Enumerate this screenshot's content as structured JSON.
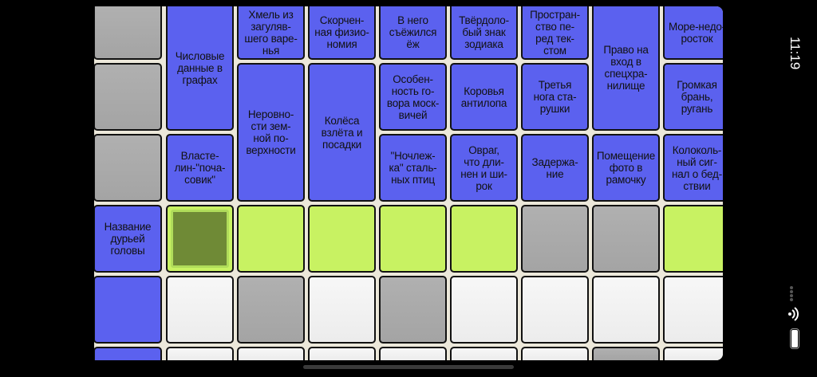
{
  "status_bar": {
    "time": "11:19",
    "wifi_icon": "wifi-icon",
    "battery_icon": "battery-icon"
  },
  "colors": {
    "clue": "#5b61ef",
    "blocked": "#a8a8a8",
    "active_word": "#c8f262",
    "selected": "#6f8a36",
    "empty": "#f2f2f2"
  },
  "grid": {
    "rows": [
      [
        {
          "t": "gray"
        },
        {
          "t": "clue",
          "text": "Числовые\nданные в\nграфах",
          "span": 2
        },
        {
          "t": "clue",
          "text": "Хмель из\nзагуляв-\nшего варе-\nнья"
        },
        {
          "t": "clue",
          "text": "Скорчен-\nная физио-\nномия"
        },
        {
          "t": "clue",
          "text": "В него\nсъёжился\nёж"
        },
        {
          "t": "clue",
          "text": "Твёрдоло-\nбый знак\nзодиака"
        },
        {
          "t": "clue",
          "text": "Простран-\nство пе-\nред тек-\nстом"
        },
        {
          "t": "clue",
          "text": "Право на\nвход в\nспецхра-\nнилище",
          "span": 2
        },
        {
          "t": "clue",
          "text": "Море-недо-\nросток"
        }
      ],
      [
        {
          "t": "gray"
        },
        null,
        {
          "t": "clue",
          "text": "Неровно-\nсти зем-\nной по-\nверхности",
          "span": 2
        },
        {
          "t": "clue",
          "text": "Колёса\nвзлёта и\nпосадки",
          "span": 2
        },
        {
          "t": "clue",
          "text": "Особен-\nность го-\nвора моск-\nвичей"
        },
        {
          "t": "clue",
          "text": "Коровья\nантилопа"
        },
        {
          "t": "clue",
          "text": "Третья\nнога ста-\nрушки"
        },
        null,
        {
          "t": "clue",
          "text": "Громкая\nбрань,\nругань"
        }
      ],
      [
        {
          "t": "gray"
        },
        {
          "t": "clue",
          "text": "Власте-\nлин-\"поча-\nсовик\""
        },
        null,
        null,
        {
          "t": "clue",
          "text": "\"Ночлеж-\nка\" сталь-\nных птиц"
        },
        {
          "t": "clue",
          "text": "Овраг,\nчто дли-\nнен и ши-\nрок"
        },
        {
          "t": "clue",
          "text": "Задержа-\nние"
        },
        {
          "t": "clue",
          "text": "Помещение\nфото в\nрамочку"
        },
        {
          "t": "clue",
          "text": "Колоколь-\nный сиг-\nнал о бед-\nствии"
        }
      ],
      [
        {
          "t": "clue",
          "text": "Название\nдурьей\nголовы"
        },
        {
          "t": "selected"
        },
        {
          "t": "green"
        },
        {
          "t": "green"
        },
        {
          "t": "green"
        },
        {
          "t": "green"
        },
        {
          "t": "gray"
        },
        {
          "t": "gray"
        },
        {
          "t": "green"
        }
      ],
      [
        {
          "t": "blue"
        },
        {
          "t": "white"
        },
        {
          "t": "gray"
        },
        {
          "t": "white"
        },
        {
          "t": "gray"
        },
        {
          "t": "white"
        },
        {
          "t": "white"
        },
        {
          "t": "white"
        },
        {
          "t": "white"
        }
      ],
      [
        {
          "t": "blue"
        },
        {
          "t": "white"
        },
        {
          "t": "white"
        },
        {
          "t": "white"
        },
        {
          "t": "white"
        },
        {
          "t": "white"
        },
        {
          "t": "white"
        },
        {
          "t": "gray"
        },
        {
          "t": "white"
        }
      ]
    ]
  }
}
